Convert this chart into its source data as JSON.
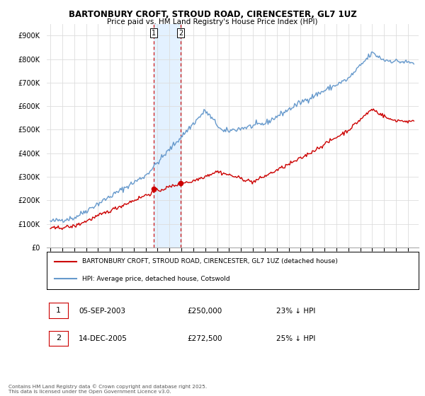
{
  "title": "BARTONBURY CROFT, STROUD ROAD, CIRENCESTER, GL7 1UZ",
  "subtitle": "Price paid vs. HM Land Registry's House Price Index (HPI)",
  "legend_label_red": "BARTONBURY CROFT, STROUD ROAD, CIRENCESTER, GL7 1UZ (detached house)",
  "legend_label_blue": "HPI: Average price, detached house, Cotswold",
  "footer": "Contains HM Land Registry data © Crown copyright and database right 2025.\nThis data is licensed under the Open Government Licence v3.0.",
  "annotation1_label": "1",
  "annotation1_date": "05-SEP-2003",
  "annotation1_price": "£250,000",
  "annotation1_hpi": "23% ↓ HPI",
  "annotation2_label": "2",
  "annotation2_date": "14-DEC-2005",
  "annotation2_price": "£272,500",
  "annotation2_hpi": "25% ↓ HPI",
  "ylim": [
    0,
    950000
  ],
  "yticks": [
    0,
    100000,
    200000,
    300000,
    400000,
    500000,
    600000,
    700000,
    800000,
    900000
  ],
  "ytick_labels": [
    "£0",
    "£100K",
    "£200K",
    "£300K",
    "£400K",
    "£500K",
    "£600K",
    "£700K",
    "£800K",
    "£900K"
  ],
  "color_red": "#cc0000",
  "color_blue": "#6699cc",
  "color_shade": "#ddeeff",
  "background_color": "#ffffff",
  "grid_color": "#dddddd",
  "purchase1_x": 2003.68,
  "purchase1_y": 250000,
  "purchase2_x": 2005.95,
  "purchase2_y": 272500,
  "xmin": 1994.7,
  "xmax": 2025.9
}
